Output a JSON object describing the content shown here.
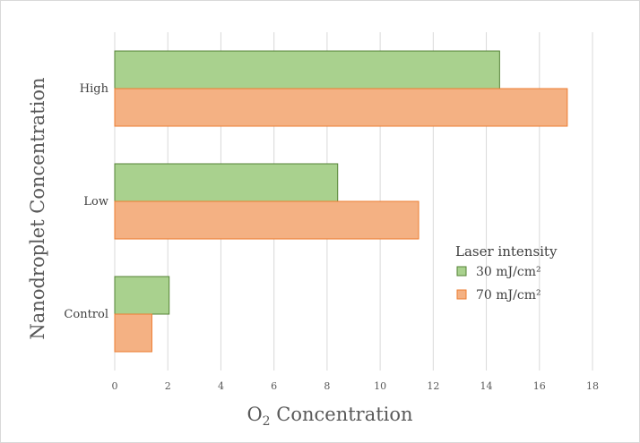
{
  "chart_data": {
    "type": "bar",
    "orientation": "horizontal",
    "categories": [
      "Control",
      "Low",
      "High"
    ],
    "series": [
      {
        "name": "30 mJ/cm²",
        "values": [
          2.05,
          8.4,
          14.5
        ],
        "color": "#a9d18e",
        "stroke": "#548235"
      },
      {
        "name": "70 mJ/cm²",
        "values": [
          1.4,
          11.45,
          17.05
        ],
        "color": "#f4b183",
        "stroke": "#ed7d31"
      }
    ],
    "xlim": [
      0,
      18
    ],
    "x_ticks": [
      0,
      2,
      4,
      6,
      8,
      10,
      12,
      14,
      16,
      18
    ],
    "xlabel_main": "O",
    "xlabel_sub": "2",
    "xlabel_rest": " Concentration",
    "ylabel": "Nanodroplet Concentration",
    "legend": {
      "title": "Laser intensity",
      "position": "right"
    },
    "grid": "vertical"
  }
}
